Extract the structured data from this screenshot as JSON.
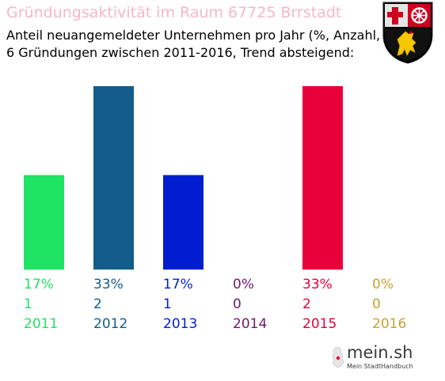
{
  "header": {
    "title": "Gründungsaktivität im Raum 67725 Brrstadt",
    "subtitle_line1": "Anteil neuangemeldeter Unternehmen pro Jahr (%, Anzahl, Jahr)",
    "subtitle_line2": "6 Gründungen zwischen 2011-2016, Trend absteigend:"
  },
  "brand": {
    "name": "mein.sh",
    "tagline": "Mein StadtHandbuch"
  },
  "icons": {
    "crest": "rheinland-pfalz-coat-of-arms-icon",
    "map": "germany-map-icon"
  },
  "colors": {
    "title": "#f6b8c6"
  },
  "chart_data": {
    "type": "bar",
    "categories": [
      "2011",
      "2012",
      "2013",
      "2014",
      "2015",
      "2016"
    ],
    "values": [
      17,
      33,
      17,
      0,
      33,
      0
    ],
    "percent_labels": [
      "17%",
      "33%",
      "17%",
      "0%",
      "33%",
      "0%"
    ],
    "counts": [
      1,
      2,
      1,
      0,
      2,
      0
    ],
    "colors": [
      "#1ee363",
      "#135d8c",
      "#001ecf",
      "#6f1a6c",
      "#e8003a",
      "#c9a22b"
    ],
    "ylim": [
      0,
      33
    ],
    "grid": false,
    "legend": "none"
  }
}
